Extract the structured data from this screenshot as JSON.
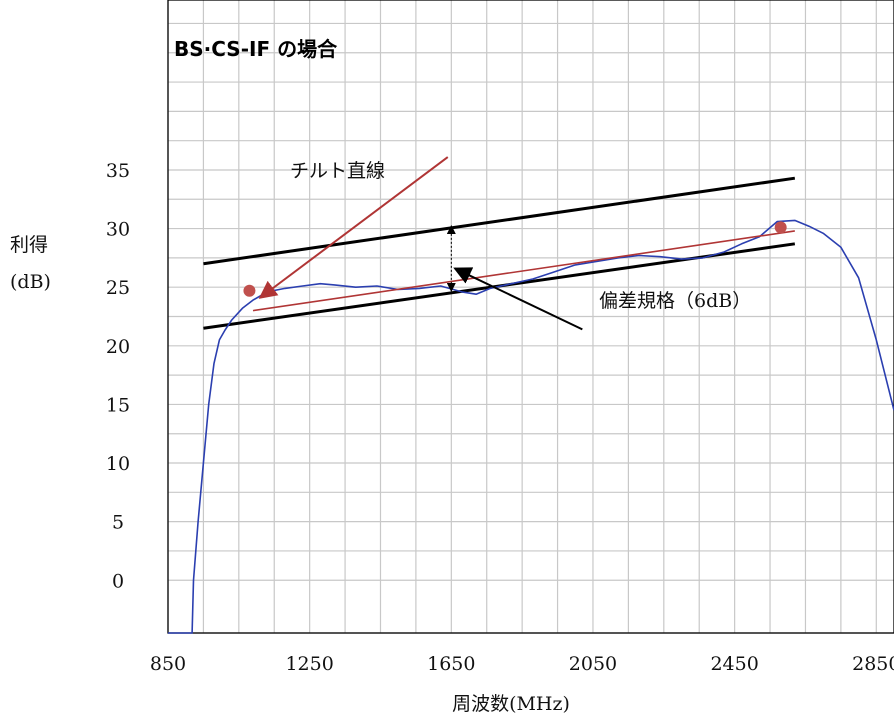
{
  "chart_data": {
    "type": "line",
    "title": "BS·CS-IF の場合",
    "xlabel": "周波数(MHz)",
    "ylabel_line1": "利得",
    "ylabel_line2": "(dB)",
    "xlim": [
      850,
      2900
    ],
    "ylim": [
      -4.5,
      49.5
    ],
    "x_ticks": [
      850,
      1250,
      1650,
      2050,
      2450,
      2850
    ],
    "y_ticks": [
      0,
      5,
      10,
      15,
      20,
      25,
      30,
      35
    ],
    "x_gridlines": [
      850,
      950,
      1050,
      1150,
      1250,
      1350,
      1450,
      1550,
      1650,
      1750,
      1850,
      1950,
      2050,
      2150,
      2250,
      2350,
      2450,
      2550,
      2650,
      2750,
      2850
    ],
    "y_gridlines": [
      -4.5,
      0,
      2.5,
      5,
      7.5,
      10,
      12.5,
      15,
      17.5,
      20,
      22.5,
      25,
      27.5,
      30,
      32.5,
      35,
      37.5,
      40,
      42.5,
      45,
      47.5
    ],
    "grid": true,
    "colors": {
      "gain_curve": "#2b3fb0",
      "tilt_line": "#b03535",
      "spec_lines": "#000000",
      "markers": "#c0504d",
      "grid": "#c8c8c8"
    },
    "series": [
      {
        "x": [
          850,
          900,
          918,
          922,
          935,
          950,
          965,
          980,
          995,
          1010,
          1030,
          1060,
          1090,
          1130,
          1180,
          1230,
          1280,
          1320,
          1380,
          1440,
          1500,
          1560,
          1620,
          1680,
          1720,
          1760,
          1820,
          1880,
          1940,
          2000,
          2060,
          2120,
          2180,
          2240,
          2300,
          2360,
          2420,
          2470,
          2520,
          2570,
          2620,
          2660,
          2700,
          2750,
          2800,
          2850,
          2900
        ],
        "values": [
          -4.5,
          -4.5,
          -4.5,
          0,
          5,
          10,
          15,
          18.5,
          20.5,
          21.3,
          22.2,
          23.2,
          23.9,
          24.6,
          24.9,
          25.1,
          25.3,
          25.2,
          25.0,
          25.1,
          24.8,
          24.9,
          25.1,
          24.6,
          24.4,
          24.9,
          25.3,
          25.7,
          26.3,
          26.9,
          27.2,
          27.5,
          27.7,
          27.6,
          27.4,
          27.5,
          28.0,
          28.7,
          29.3,
          30.6,
          30.7,
          30.2,
          29.6,
          28.4,
          25.8,
          20.5,
          14.5
        ]
      }
    ],
    "tilt_line": {
      "x": [
        1090,
        2620
      ],
      "y": [
        23.0,
        29.8
      ]
    },
    "upper_spec_line": {
      "x": [
        950,
        2620
      ],
      "y": [
        27.0,
        34.3
      ]
    },
    "lower_spec_line": {
      "x": [
        950,
        2620
      ],
      "y": [
        21.5,
        28.7
      ]
    },
    "markers": [
      {
        "x": 1080,
        "y": 24.7
      },
      {
        "x": 2580,
        "y": 30.1
      }
    ],
    "annotations": {
      "tilt_label": "チルト直線",
      "deviation_label": "偏差規格（6dB）"
    },
    "deviation_arrow": {
      "x": 1650,
      "y_top": 30.4,
      "y_bottom": 24.5
    },
    "tilt_pointer": {
      "from": [
        1640,
        36.1
      ],
      "to": [
        1110,
        24.1
      ]
    },
    "deviation_pointer": {
      "from": [
        2020,
        21.4
      ],
      "to": [
        1660,
        26.6
      ]
    }
  }
}
